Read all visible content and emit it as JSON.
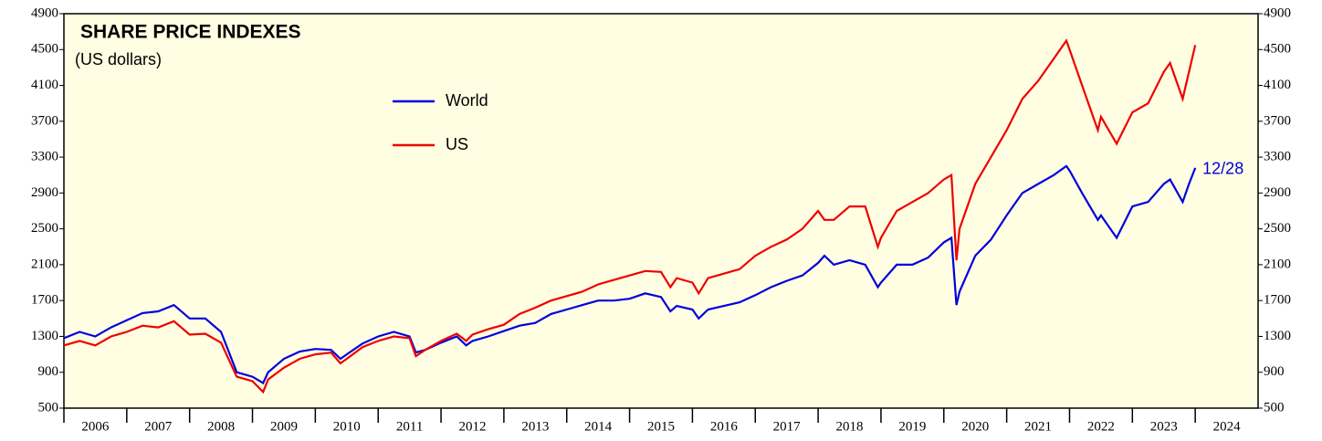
{
  "chart_data": {
    "type": "line",
    "title": "SHARE PRICE INDEXES",
    "subtitle": "(US dollars)",
    "annotation": "12/28",
    "xlim": [
      2006,
      2025
    ],
    "xticks": [
      {
        "value": 2006,
        "label": "2006"
      },
      {
        "value": 2007,
        "label": "2007"
      },
      {
        "value": 2008,
        "label": "2008"
      },
      {
        "value": 2009,
        "label": "2009"
      },
      {
        "value": 2010,
        "label": "2010"
      },
      {
        "value": 2011,
        "label": "2011"
      },
      {
        "value": 2012,
        "label": "2012"
      },
      {
        "value": 2013,
        "label": "2013"
      },
      {
        "value": 2014,
        "label": "2014"
      },
      {
        "value": 2015,
        "label": "2015"
      },
      {
        "value": 2016,
        "label": "2016"
      },
      {
        "value": 2017,
        "label": "2017"
      },
      {
        "value": 2018,
        "label": "2018"
      },
      {
        "value": 2019,
        "label": "2019"
      },
      {
        "value": 2020,
        "label": "2020"
      },
      {
        "value": 2021,
        "label": "2021"
      },
      {
        "value": 2022,
        "label": "2022"
      },
      {
        "value": 2023,
        "label": "2023"
      },
      {
        "value": 2024,
        "label": "2024"
      }
    ],
    "ylim": [
      500,
      4900
    ],
    "yticks": [
      500,
      900,
      1300,
      1700,
      2100,
      2500,
      2900,
      3300,
      3700,
      4100,
      4500,
      4900
    ],
    "x": [
      2006.0,
      2006.25,
      2006.5,
      2006.75,
      2007.0,
      2007.25,
      2007.5,
      2007.75,
      2008.0,
      2008.25,
      2008.5,
      2008.75,
      2009.0,
      2009.17,
      2009.25,
      2009.5,
      2009.75,
      2010.0,
      2010.25,
      2010.4,
      2010.5,
      2010.75,
      2011.0,
      2011.25,
      2011.5,
      2011.6,
      2011.75,
      2012.0,
      2012.25,
      2012.4,
      2012.5,
      2012.75,
      2013.0,
      2013.25,
      2013.5,
      2013.75,
      2014.0,
      2014.25,
      2014.5,
      2014.75,
      2015.0,
      2015.25,
      2015.5,
      2015.65,
      2015.75,
      2016.0,
      2016.1,
      2016.25,
      2016.5,
      2016.75,
      2017.0,
      2017.25,
      2017.5,
      2017.75,
      2018.0,
      2018.1,
      2018.25,
      2018.5,
      2018.75,
      2018.95,
      2019.0,
      2019.25,
      2019.5,
      2019.75,
      2020.0,
      2020.12,
      2020.2,
      2020.25,
      2020.5,
      2020.75,
      2021.0,
      2021.25,
      2021.5,
      2021.75,
      2021.95,
      2022.0,
      2022.2,
      2022.45,
      2022.5,
      2022.75,
      2023.0,
      2023.25,
      2023.5,
      2023.6,
      2023.8,
      2023.9,
      2024.0
    ],
    "series": [
      {
        "name": "World",
        "color": "#0000dd",
        "values": [
          1280,
          1350,
          1300,
          1400,
          1480,
          1560,
          1580,
          1650,
          1500,
          1500,
          1350,
          900,
          850,
          780,
          900,
          1050,
          1130,
          1160,
          1150,
          1050,
          1100,
          1220,
          1300,
          1350,
          1300,
          1120,
          1150,
          1230,
          1300,
          1200,
          1250,
          1300,
          1360,
          1420,
          1450,
          1550,
          1600,
          1650,
          1700,
          1700,
          1720,
          1780,
          1740,
          1580,
          1640,
          1600,
          1500,
          1600,
          1640,
          1680,
          1760,
          1850,
          1920,
          1980,
          2120,
          2200,
          2100,
          2150,
          2100,
          1850,
          1900,
          2100,
          2100,
          2180,
          2350,
          2400,
          1650,
          1800,
          2200,
          2380,
          2650,
          2900,
          3000,
          3100,
          3200,
          3150,
          2900,
          2600,
          2650,
          2400,
          2750,
          2800,
          3000,
          3050,
          2800,
          3000,
          3180
        ]
      },
      {
        "name": "US",
        "color": "#ee0000",
        "values": [
          1200,
          1250,
          1200,
          1300,
          1350,
          1420,
          1400,
          1470,
          1320,
          1330,
          1230,
          850,
          800,
          680,
          820,
          950,
          1050,
          1100,
          1120,
          1000,
          1050,
          1180,
          1250,
          1300,
          1280,
          1080,
          1150,
          1250,
          1330,
          1250,
          1320,
          1380,
          1430,
          1550,
          1620,
          1700,
          1750,
          1800,
          1880,
          1930,
          1980,
          2030,
          2020,
          1850,
          1950,
          1900,
          1780,
          1950,
          2000,
          2050,
          2200,
          2300,
          2380,
          2500,
          2700,
          2600,
          2600,
          2750,
          2750,
          2300,
          2400,
          2700,
          2800,
          2900,
          3050,
          3100,
          2150,
          2500,
          3000,
          3300,
          3600,
          3950,
          4150,
          4400,
          4600,
          4500,
          4100,
          3600,
          3750,
          3450,
          3800,
          3900,
          4250,
          4350,
          3950,
          4250,
          4550
        ]
      }
    ]
  }
}
